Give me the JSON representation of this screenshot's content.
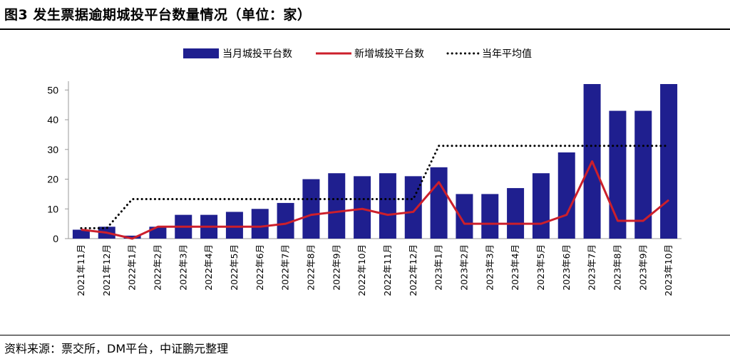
{
  "header": {
    "title": "图3 发生票据逾期城投平台数量情况（单位：家）"
  },
  "footer": {
    "source": "资料来源：票交所，DM平台，中证鹏元整理"
  },
  "chart_data": {
    "type": "bar",
    "title": "图3 发生票据逾期城投平台数量情况（单位：家）",
    "categories": [
      "2021年11月",
      "2021年12月",
      "2022年1月",
      "2022年2月",
      "2022年3月",
      "2022年4月",
      "2022年5月",
      "2022年6月",
      "2022年7月",
      "2022年8月",
      "2022年9月",
      "2022年10月",
      "2022年11月",
      "2022年12月",
      "2023年1月",
      "2023年2月",
      "2023年3月",
      "2023年4月",
      "2023年5月",
      "2023年6月",
      "2023年7月",
      "2023年8月",
      "2023年9月",
      "2023年10月"
    ],
    "series": [
      {
        "name": "当月城投平台数",
        "type": "bar",
        "color": "#1f1f8f",
        "values": [
          3,
          4,
          1,
          4,
          8,
          8,
          9,
          10,
          12,
          20,
          22,
          21,
          22,
          21,
          24,
          15,
          15,
          17,
          22,
          29,
          52,
          43,
          43,
          52
        ]
      },
      {
        "name": "新增城投平台数",
        "type": "line",
        "color": "#cc1f2b",
        "values": [
          3,
          2,
          0,
          4,
          4,
          4,
          4,
          4,
          5,
          8,
          9,
          10,
          8,
          9,
          19,
          5,
          5,
          5,
          5,
          8,
          26,
          6,
          6,
          13
        ]
      },
      {
        "name": "当年平均值",
        "type": "dotted-line",
        "color": "#000000",
        "values": [
          3.5,
          3.5,
          13.3,
          13.3,
          13.3,
          13.3,
          13.3,
          13.3,
          13.3,
          13.3,
          13.3,
          13.3,
          13.3,
          13.3,
          31.2,
          31.2,
          31.2,
          31.2,
          31.2,
          31.2,
          31.2,
          31.2,
          31.2,
          31.2
        ]
      }
    ],
    "yticks": [
      0,
      10,
      20,
      30,
      40,
      50
    ],
    "ylim": [
      0,
      52
    ],
    "legend_position": "top-center",
    "grid": false
  }
}
